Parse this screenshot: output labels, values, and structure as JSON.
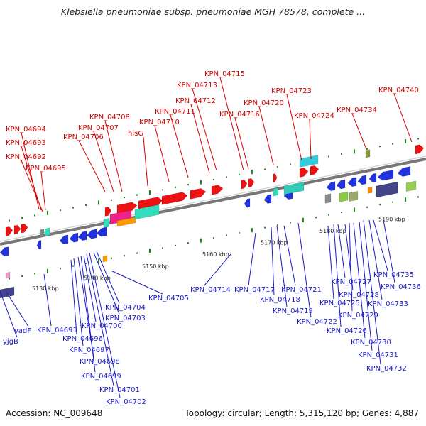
{
  "title": "Klebsiella pneumoniae subsp. pneumoniae MGH 78578, complete ...",
  "footer": {
    "accession": "Accession: NC_009648",
    "summary": "Topology: circular; Length: 5,315,120 bp; Genes: 4,887"
  },
  "colors": {
    "top_label": "#d40000",
    "bottom_label": "#1a1ac8",
    "backbone": "#888888",
    "red_gene": "#ee1111",
    "blue_gene": "#2233dd"
  },
  "scale_ticks": [
    "5130 kbp",
    "5140 kbp",
    "5150 kbp",
    "5160 kbp",
    "5170 kbp",
    "5180 kbp",
    "5190 kbp"
  ],
  "top_labels": [
    "KPN_04694",
    "KPN_04693",
    "KPN_04692",
    "KPN_04695",
    "KPN_04706",
    "KPN_04707",
    "KPN_04708",
    "hisG",
    "KPN_04710",
    "KPN_04711",
    "KPN_04712",
    "KPN_04713",
    "KPN_04715",
    "KPN_04716",
    "KPN_04720",
    "KPN_04723",
    "KPN_04724",
    "KPN_04734",
    "KPN_04740"
  ],
  "bottom_labels": [
    "yjgB",
    "yadF",
    "KPN_04691",
    "KPN_04696",
    "KPN_04697",
    "KPN_04698",
    "KPN_04699",
    "KPN_04700",
    "KPN_04701",
    "KPN_04702",
    "KPN_04703",
    "KPN_04704",
    "KPN_04705",
    "KPN_04714",
    "KPN_04717",
    "KPN_04718",
    "KPN_04719",
    "KPN_04721",
    "KPN_04722",
    "KPN_04725",
    "KPN_04726",
    "KPN_04727",
    "KPN_04728",
    "KPN_04729",
    "KPN_04730",
    "KPN_04731",
    "KPN_04732",
    "KPN_04733",
    "KPN_04735",
    "KPN_04736"
  ]
}
